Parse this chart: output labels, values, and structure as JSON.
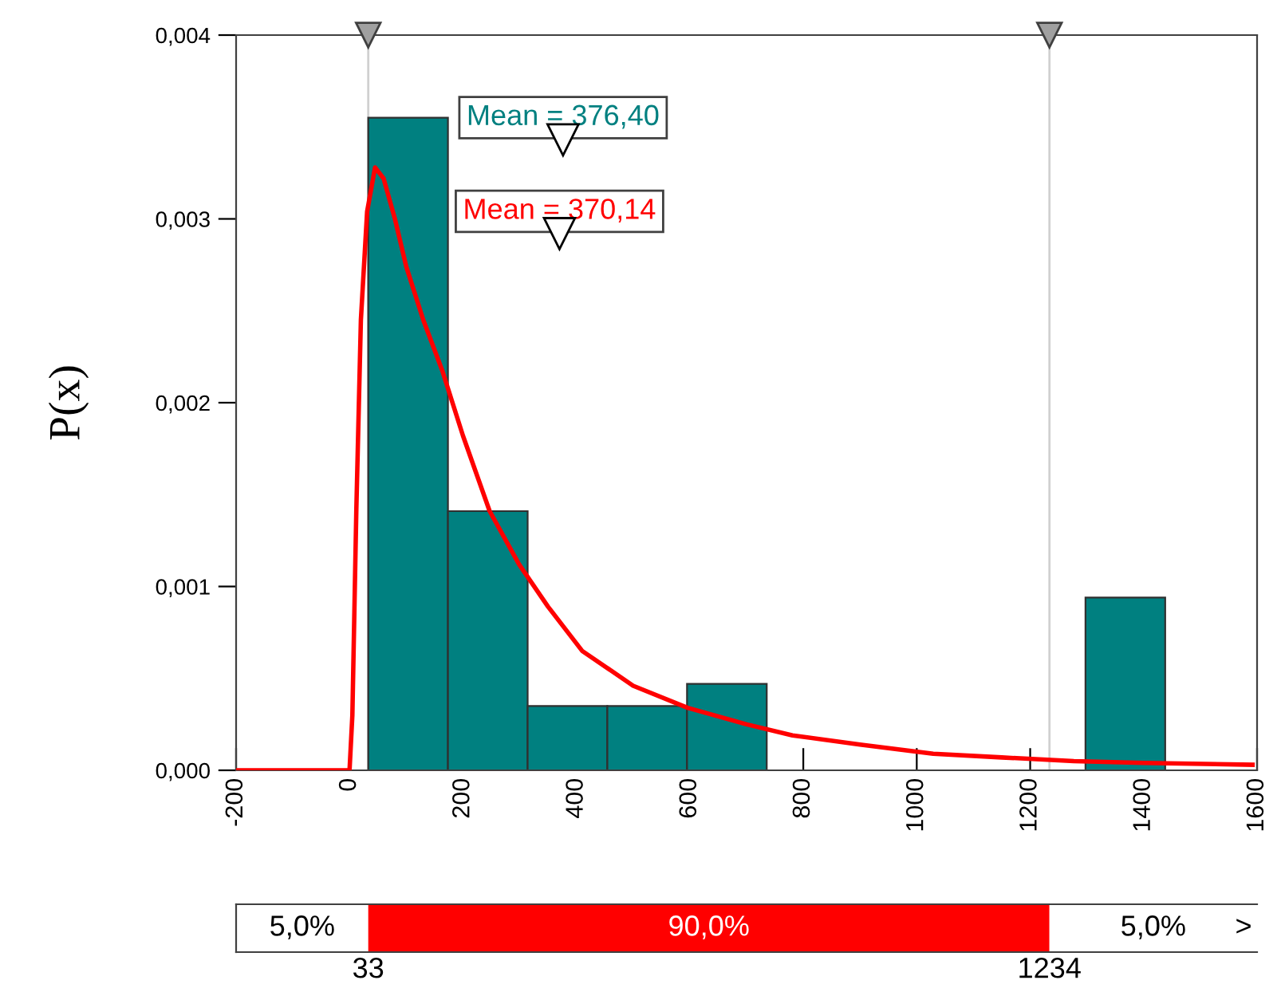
{
  "chart_data": [
    {
      "type": "histogram",
      "ylabel": "P(x)",
      "bins": [
        33,
        173.5,
        314,
        454.5,
        595,
        735.5,
        876,
        1016.5,
        1157,
        1297.5,
        1438
      ],
      "values": [
        0.00355,
        0.00141,
        0.00035,
        0.00035,
        0.00047,
        0,
        0,
        0,
        0,
        0.00094
      ],
      "color": "#008080",
      "series": [
        {
          "type": "line",
          "color": "#ff0000",
          "x": [
            -200,
            0,
            5,
            12,
            20,
            31,
            45,
            60,
            80,
            100,
            130,
            164,
            200,
            247,
            299,
            350,
            410,
            500,
            596,
            700,
            781,
            900,
            1029,
            1150,
            1277,
            1400,
            1592
          ],
          "values": [
            0,
            0,
            0.0003,
            0.00142,
            0.00245,
            0.00304,
            0.00328,
            0.00322,
            0.003,
            0.00274,
            0.00245,
            0.00217,
            0.00182,
            0.00141,
            0.00112,
            0.00089,
            0.00065,
            0.00046,
            0.00034,
            0.00025,
            0.00019,
            0.00014,
            9e-05,
            7e-05,
            5e-05,
            4e-05,
            3e-05
          ]
        }
      ],
      "xlim": [
        -200,
        1600
      ],
      "xticks": [
        -200,
        0,
        200,
        400,
        600,
        800,
        1000,
        1200,
        1400,
        1600
      ],
      "ylim": [
        0,
        0.004
      ],
      "yticks": [
        {
          "value": 0,
          "label": "0,000"
        },
        {
          "value": 0.001,
          "label": "0,001"
        },
        {
          "value": 0.002,
          "label": "0,002"
        },
        {
          "value": 0.003,
          "label": "0,003"
        },
        {
          "value": 0.004,
          "label": "0,004"
        }
      ],
      "ref_lines": [
        {
          "axis": "x",
          "value": 33,
          "color": "#d0d0d0"
        },
        {
          "axis": "x",
          "value": 1234,
          "color": "#d0d0d0"
        }
      ],
      "annotations": [
        {
          "text": "Mean = 376,40",
          "x": 376.4,
          "y": 0.00343
        },
        {
          "text": "Mean = 370,14",
          "x": 370.14,
          "y": 0.00292
        }
      ],
      "grid": false
    },
    {
      "type": "other",
      "annotations": [
        "5,0%",
        "90,0%",
        "5,0%",
        ">",
        "33",
        "1234"
      ]
    }
  ]
}
